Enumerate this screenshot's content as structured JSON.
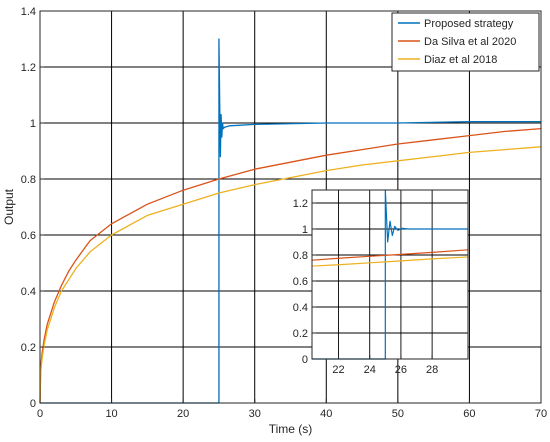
{
  "chart_data": [
    {
      "type": "line",
      "title": "",
      "xlabel": "Time (s)",
      "ylabel": "Output",
      "xlim": [
        0,
        70
      ],
      "ylim": [
        0,
        1.4
      ],
      "grid": true,
      "legend_position": "top-right",
      "xticks": [
        0,
        10,
        20,
        30,
        40,
        50,
        60,
        70
      ],
      "yticks": [
        0,
        0.2,
        0.4,
        0.6,
        0.8,
        1,
        1.2,
        1.4
      ],
      "xtick_labels": [
        "0",
        "10",
        "20",
        "30",
        "40",
        "50",
        "60",
        "70"
      ],
      "ytick_labels": [
        "0",
        "0.2",
        "0.4",
        "0.6",
        "0.8",
        "1",
        "1.2",
        "1.4"
      ],
      "series": [
        {
          "name": "Proposed strategy",
          "color": "#0072BD",
          "x": [
            0,
            25.0,
            25.0,
            25.2,
            25.3,
            25.4,
            25.5,
            25.6,
            25.8,
            26.5,
            30,
            40,
            50,
            60,
            70
          ],
          "y": [
            0,
            0,
            1.3,
            0.88,
            1.03,
            0.95,
            1.0,
            0.98,
            0.985,
            0.99,
            0.995,
            1.0,
            1.0,
            1.005,
            1.005
          ]
        },
        {
          "name": "Da Silva et al 2020",
          "color": "#D95319",
          "x": [
            0,
            0.1,
            0.3,
            0.6,
            1,
            2,
            3,
            4,
            5,
            7,
            10,
            15,
            20,
            25,
            30,
            35,
            40,
            45,
            50,
            55,
            60,
            65,
            70
          ],
          "y": [
            0,
            0.13,
            0.18,
            0.23,
            0.28,
            0.36,
            0.42,
            0.47,
            0.51,
            0.58,
            0.64,
            0.71,
            0.76,
            0.8,
            0.835,
            0.86,
            0.885,
            0.905,
            0.925,
            0.94,
            0.955,
            0.97,
            0.98
          ]
        },
        {
          "name": "Diaz et al 2018",
          "color": "#EDB120",
          "x": [
            0,
            0.1,
            0.3,
            0.6,
            1,
            2,
            3,
            4,
            5,
            7,
            10,
            15,
            20,
            25,
            30,
            35,
            40,
            45,
            50,
            55,
            60,
            65,
            70
          ],
          "y": [
            0,
            0.11,
            0.16,
            0.21,
            0.26,
            0.34,
            0.4,
            0.44,
            0.48,
            0.54,
            0.6,
            0.67,
            0.71,
            0.75,
            0.78,
            0.805,
            0.83,
            0.85,
            0.865,
            0.88,
            0.895,
            0.905,
            0.915
          ]
        }
      ]
    },
    {
      "type": "line",
      "title": "",
      "xlabel": "",
      "ylabel": "",
      "xlim": [
        20.3,
        30.3
      ],
      "ylim": [
        0,
        1.3
      ],
      "grid": true,
      "legend_position": "",
      "xticks": [
        22,
        24,
        26,
        28
      ],
      "yticks": [
        0,
        0.2,
        0.4,
        0.6,
        0.8,
        1,
        1.2
      ],
      "xtick_labels": [
        "22",
        "24",
        "26",
        "28"
      ],
      "ytick_labels": [
        "0",
        "0.2",
        "0.4",
        "0.6",
        "0.8",
        "1",
        "1.2"
      ],
      "series": [
        {
          "color": "#0072BD",
          "x": [
            20.3,
            25.0,
            25.0,
            25.15,
            25.3,
            25.45,
            25.6,
            25.8,
            26.1,
            26.5,
            27,
            30.3
          ],
          "y": [
            0,
            0,
            1.3,
            0.9,
            1.06,
            0.95,
            1.02,
            0.99,
            1.005,
            1.0,
            1.0,
            1.0
          ]
        },
        {
          "color": "#D95319",
          "x": [
            20.3,
            22,
            24,
            26,
            28,
            30.3
          ],
          "y": [
            0.76,
            0.775,
            0.79,
            0.805,
            0.82,
            0.84
          ]
        },
        {
          "color": "#EDB120",
          "x": [
            20.3,
            22,
            24,
            26,
            28,
            30.3
          ],
          "y": [
            0.715,
            0.725,
            0.74,
            0.755,
            0.77,
            0.785
          ]
        }
      ]
    }
  ]
}
